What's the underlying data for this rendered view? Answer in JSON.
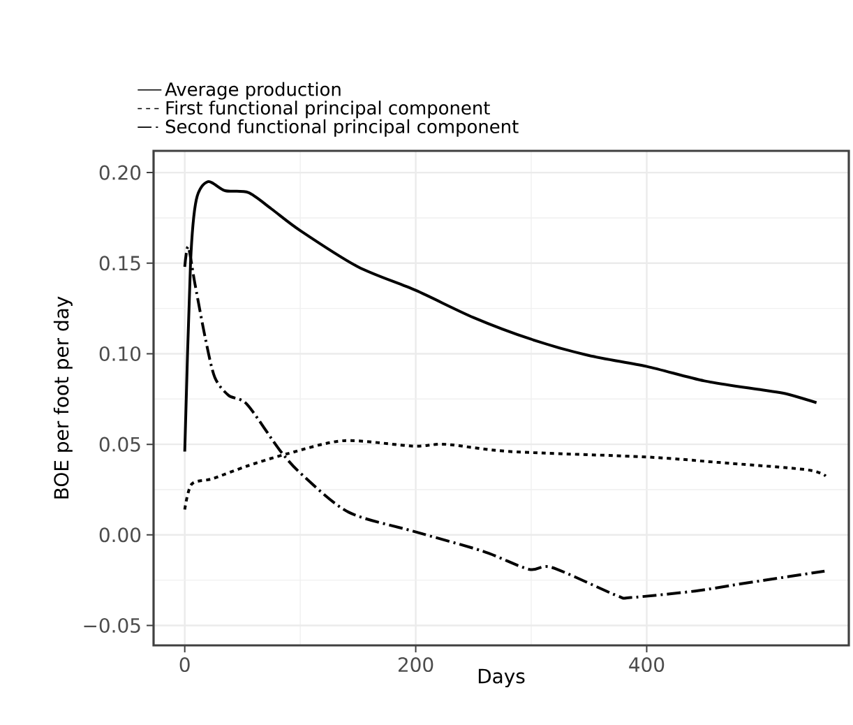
{
  "chart_data": {
    "type": "line",
    "xlabel": "Days",
    "ylabel": "BOE per foot per day",
    "xlim": [
      -27,
      575
    ],
    "ylim": [
      -0.061,
      0.212
    ],
    "xticks": [
      0,
      200,
      400
    ],
    "yticks": [
      {
        "value": -0.05,
        "label": "−0.05"
      },
      {
        "value": 0,
        "label": "0.00"
      },
      {
        "value": 0.05,
        "label": "0.05"
      },
      {
        "value": 0.1,
        "label": "0.10"
      },
      {
        "value": 0.15,
        "label": "0.15"
      },
      {
        "value": 0.2,
        "label": "0.20"
      }
    ],
    "grid": true,
    "legend": "top left",
    "series": [
      {
        "name": "Average production",
        "color": "#000000",
        "line_style": "solid",
        "x": [
          0,
          5,
          10,
          20,
          35,
          55,
          75,
          100,
          150,
          200,
          250,
          300,
          350,
          400,
          450,
          500,
          520,
          547
        ],
        "values": [
          0.046,
          0.15,
          0.185,
          0.195,
          0.19,
          0.189,
          0.18,
          0.168,
          0.148,
          0.135,
          0.12,
          0.108,
          0.099,
          0.093,
          0.085,
          0.08,
          0.078,
          0.073
        ]
      },
      {
        "name": "First functional principal component",
        "color": "#000000",
        "line_style": "dashed",
        "x": [
          0,
          6,
          24,
          54,
          90,
          138,
          198,
          226,
          282,
          400,
          462,
          538,
          555
        ],
        "values": [
          0.014,
          0.028,
          0.031,
          0.038,
          0.045,
          0.052,
          0.049,
          0.05,
          0.046,
          0.043,
          0.04,
          0.036,
          0.0325
        ]
      },
      {
        "name": "Second functional principal component",
        "color": "#000000",
        "line_style": "dashdot",
        "x": [
          0,
          3,
          9,
          18,
          26,
          38,
          54,
          82,
          102,
          142,
          198,
          258,
          298,
          318,
          374,
          386,
          442,
          482,
          554
        ],
        "values": [
          0.148,
          0.159,
          0.138,
          0.108,
          0.087,
          0.077,
          0.072,
          0.047,
          0.033,
          0.0125,
          0.002,
          -0.009,
          -0.019,
          -0.018,
          -0.0335,
          -0.0346,
          -0.031,
          -0.027,
          -0.02
        ]
      }
    ]
  }
}
